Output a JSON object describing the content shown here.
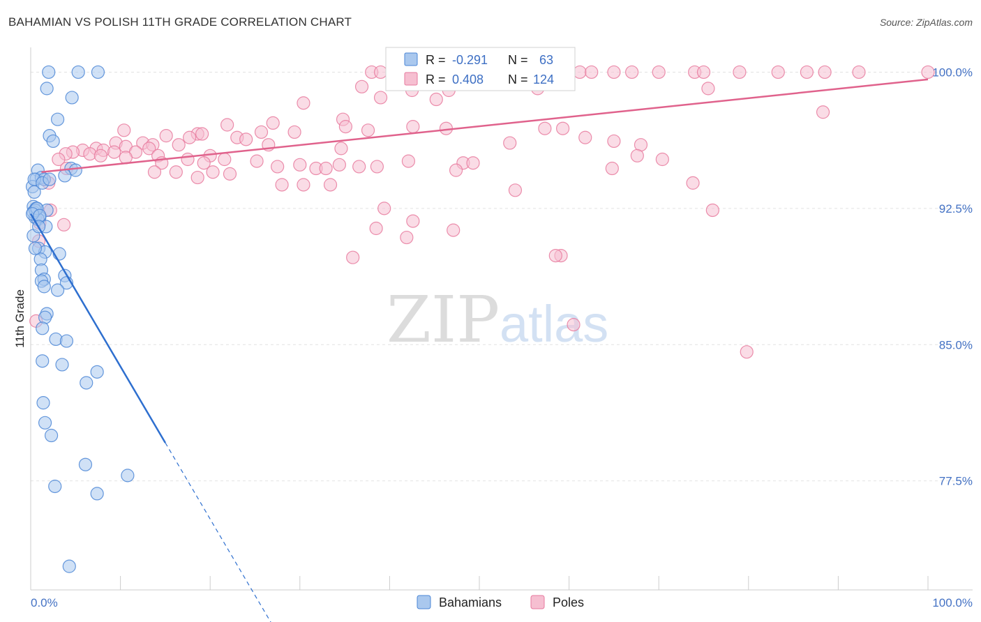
{
  "title": "BAHAMIAN VS POLISH 11TH GRADE CORRELATION CHART",
  "source": "Source: ZipAtlas.com",
  "watermark": {
    "zip": "ZIP",
    "atlas": "atlas"
  },
  "colors": {
    "blue": "#4b86d6",
    "blue_fill": "#aac8ee",
    "blue_line": "#2e6fcf",
    "pink": "#e77a9e",
    "pink_fill": "#f6bfd1",
    "pink_line": "#e0628c",
    "grid": "#e2e2e2",
    "tick_text": "#4472c4"
  },
  "legend": {
    "r_label": "R =",
    "n_label": "N =",
    "rows": [
      {
        "name": "Bahamians",
        "r": "-0.291",
        "n": "63"
      },
      {
        "name": "Poles",
        "r": "0.408",
        "n": "124"
      }
    ]
  },
  "chart_data": {
    "type": "scatter",
    "title": "BAHAMIAN VS POLISH 11TH GRADE CORRELATION CHART",
    "xlabel": "",
    "ylabel": "11th Grade",
    "xlim": [
      0,
      100
    ],
    "ylim": [
      71.5,
      100.9
    ],
    "x_tick_labels": [
      "0.0%",
      "100.0%"
    ],
    "y_ticks": [
      77.5,
      85.0,
      92.5,
      100.0
    ],
    "y_tick_labels": [
      "77.5%",
      "85.0%",
      "92.5%",
      "100.0%"
    ],
    "grid": true,
    "legend_position": "bottom",
    "series": [
      {
        "name": "Bahamians",
        "r": -0.291,
        "n": 63,
        "trend": {
          "x0": 0.0,
          "y0": 92.2,
          "x1": 15.0,
          "y1": 79.6,
          "dash_to_x": 27.0
        },
        "points": [
          [
            2.0,
            100.0
          ],
          [
            5.3,
            100.0
          ],
          [
            7.5,
            100.0
          ],
          [
            1.8,
            99.1
          ],
          [
            4.6,
            98.6
          ],
          [
            3.0,
            97.4
          ],
          [
            2.1,
            96.5
          ],
          [
            2.5,
            96.2
          ],
          [
            0.8,
            94.6
          ],
          [
            4.5,
            94.7
          ],
          [
            5.0,
            94.6
          ],
          [
            0.6,
            94.1
          ],
          [
            1.2,
            94.2
          ],
          [
            1.5,
            94.1
          ],
          [
            3.8,
            94.3
          ],
          [
            0.2,
            93.7
          ],
          [
            0.4,
            93.4
          ],
          [
            0.3,
            92.6
          ],
          [
            0.6,
            92.5
          ],
          [
            1.8,
            92.4
          ],
          [
            0.5,
            92.0
          ],
          [
            1.0,
            92.0
          ],
          [
            0.8,
            91.9
          ],
          [
            1.7,
            91.5
          ],
          [
            0.3,
            91.0
          ],
          [
            0.9,
            90.3
          ],
          [
            1.6,
            90.1
          ],
          [
            3.2,
            90.0
          ],
          [
            1.1,
            89.7
          ],
          [
            1.2,
            89.1
          ],
          [
            3.8,
            88.8
          ],
          [
            1.5,
            88.6
          ],
          [
            1.2,
            88.5
          ],
          [
            4.0,
            88.4
          ],
          [
            1.5,
            88.2
          ],
          [
            3.0,
            88.0
          ],
          [
            1.8,
            86.7
          ],
          [
            1.6,
            86.5
          ],
          [
            1.3,
            85.9
          ],
          [
            2.8,
            85.3
          ],
          [
            4.0,
            85.2
          ],
          [
            1.3,
            84.1
          ],
          [
            3.5,
            83.9
          ],
          [
            7.4,
            83.5
          ],
          [
            6.2,
            82.9
          ],
          [
            1.4,
            81.8
          ],
          [
            1.6,
            80.7
          ],
          [
            2.3,
            80.0
          ],
          [
            6.1,
            78.4
          ],
          [
            10.8,
            77.8
          ],
          [
            2.7,
            77.2
          ],
          [
            7.4,
            76.8
          ],
          [
            4.3,
            72.8
          ],
          [
            0.3,
            92.3
          ],
          [
            0.5,
            92.4
          ],
          [
            0.7,
            92.5
          ],
          [
            0.2,
            92.2
          ],
          [
            1.0,
            92.1
          ],
          [
            0.4,
            94.1
          ],
          [
            1.3,
            93.9
          ],
          [
            2.1,
            94.1
          ],
          [
            0.9,
            91.5
          ],
          [
            0.5,
            90.3
          ]
        ]
      },
      {
        "name": "Poles",
        "r": 0.408,
        "n": 124,
        "trend": {
          "x0": 1.2,
          "y0": 94.5,
          "x1": 100.0,
          "y1": 99.6
        },
        "points": [
          [
            38.0,
            100.0
          ],
          [
            39.0,
            100.0
          ],
          [
            41.0,
            100.0
          ],
          [
            42.2,
            100.0
          ],
          [
            44.0,
            100.0
          ],
          [
            45.0,
            100.0
          ],
          [
            46.5,
            100.0
          ],
          [
            49.5,
            100.0
          ],
          [
            53.0,
            100.0
          ],
          [
            55.0,
            100.0
          ],
          [
            56.3,
            100.0
          ],
          [
            61.2,
            100.0
          ],
          [
            62.5,
            100.0
          ],
          [
            65.0,
            100.0
          ],
          [
            67.0,
            100.0
          ],
          [
            70.0,
            100.0
          ],
          [
            74.0,
            100.0
          ],
          [
            75.0,
            100.0
          ],
          [
            79.0,
            100.0
          ],
          [
            83.3,
            100.0
          ],
          [
            86.5,
            100.0
          ],
          [
            88.5,
            100.0
          ],
          [
            92.3,
            100.0
          ],
          [
            100.0,
            100.0
          ],
          [
            36.9,
            99.2
          ],
          [
            42.5,
            99.0
          ],
          [
            46.6,
            99.0
          ],
          [
            56.5,
            99.1
          ],
          [
            75.5,
            99.1
          ],
          [
            45.2,
            98.5
          ],
          [
            39.0,
            98.6
          ],
          [
            30.4,
            98.3
          ],
          [
            88.3,
            97.8
          ],
          [
            34.8,
            97.4
          ],
          [
            27.0,
            97.2
          ],
          [
            21.9,
            97.1
          ],
          [
            35.1,
            97.0
          ],
          [
            42.6,
            97.0
          ],
          [
            46.3,
            96.9
          ],
          [
            57.3,
            96.9
          ],
          [
            59.3,
            96.9
          ],
          [
            37.6,
            96.8
          ],
          [
            10.4,
            96.8
          ],
          [
            25.7,
            96.7
          ],
          [
            29.4,
            96.7
          ],
          [
            18.6,
            96.6
          ],
          [
            19.1,
            96.6
          ],
          [
            15.1,
            96.5
          ],
          [
            23.0,
            96.4
          ],
          [
            17.7,
            96.4
          ],
          [
            24.0,
            96.3
          ],
          [
            26.5,
            96.0
          ],
          [
            53.4,
            96.1
          ],
          [
            68.0,
            96.0
          ],
          [
            12.5,
            96.1
          ],
          [
            13.6,
            96.0
          ],
          [
            16.5,
            96.0
          ],
          [
            9.5,
            96.1
          ],
          [
            10.6,
            95.9
          ],
          [
            13.2,
            95.8
          ],
          [
            34.6,
            95.8
          ],
          [
            7.3,
            95.8
          ],
          [
            8.1,
            95.7
          ],
          [
            9.3,
            95.6
          ],
          [
            5.8,
            95.7
          ],
          [
            11.7,
            95.6
          ],
          [
            14.2,
            95.4
          ],
          [
            20.0,
            95.4
          ],
          [
            4.7,
            95.6
          ],
          [
            3.9,
            95.5
          ],
          [
            6.6,
            95.5
          ],
          [
            7.8,
            95.4
          ],
          [
            10.6,
            95.3
          ],
          [
            17.5,
            95.2
          ],
          [
            21.6,
            95.2
          ],
          [
            25.2,
            95.1
          ],
          [
            3.1,
            95.2
          ],
          [
            14.6,
            95.0
          ],
          [
            19.3,
            95.0
          ],
          [
            34.4,
            94.9
          ],
          [
            42.1,
            95.1
          ],
          [
            48.2,
            95.0
          ],
          [
            49.3,
            95.0
          ],
          [
            30.0,
            94.9
          ],
          [
            27.5,
            94.8
          ],
          [
            31.8,
            94.7
          ],
          [
            32.9,
            94.7
          ],
          [
            36.6,
            94.8
          ],
          [
            38.6,
            94.8
          ],
          [
            47.4,
            94.6
          ],
          [
            13.8,
            94.5
          ],
          [
            16.2,
            94.5
          ],
          [
            20.3,
            94.5
          ],
          [
            22.2,
            94.4
          ],
          [
            18.6,
            94.2
          ],
          [
            28.0,
            93.8
          ],
          [
            30.4,
            93.8
          ],
          [
            33.4,
            93.8
          ],
          [
            54.0,
            93.5
          ],
          [
            2.0,
            93.9
          ],
          [
            4.0,
            94.7
          ],
          [
            1.5,
            94.1
          ],
          [
            3.7,
            91.6
          ],
          [
            38.5,
            91.4
          ],
          [
            39.4,
            92.5
          ],
          [
            42.6,
            91.8
          ],
          [
            47.1,
            91.3
          ],
          [
            59.1,
            89.9
          ],
          [
            35.9,
            89.8
          ],
          [
            76.0,
            92.4
          ],
          [
            58.5,
            89.9
          ],
          [
            60.5,
            86.1
          ],
          [
            61.8,
            96.4
          ],
          [
            65.0,
            96.2
          ],
          [
            67.6,
            95.4
          ],
          [
            70.4,
            95.2
          ],
          [
            64.8,
            94.7
          ],
          [
            73.8,
            93.9
          ],
          [
            79.8,
            84.6
          ],
          [
            41.9,
            90.9
          ],
          [
            2.2,
            92.4
          ],
          [
            1.0,
            91.7
          ],
          [
            0.6,
            86.3
          ],
          [
            0.9,
            90.7
          ]
        ]
      }
    ]
  }
}
